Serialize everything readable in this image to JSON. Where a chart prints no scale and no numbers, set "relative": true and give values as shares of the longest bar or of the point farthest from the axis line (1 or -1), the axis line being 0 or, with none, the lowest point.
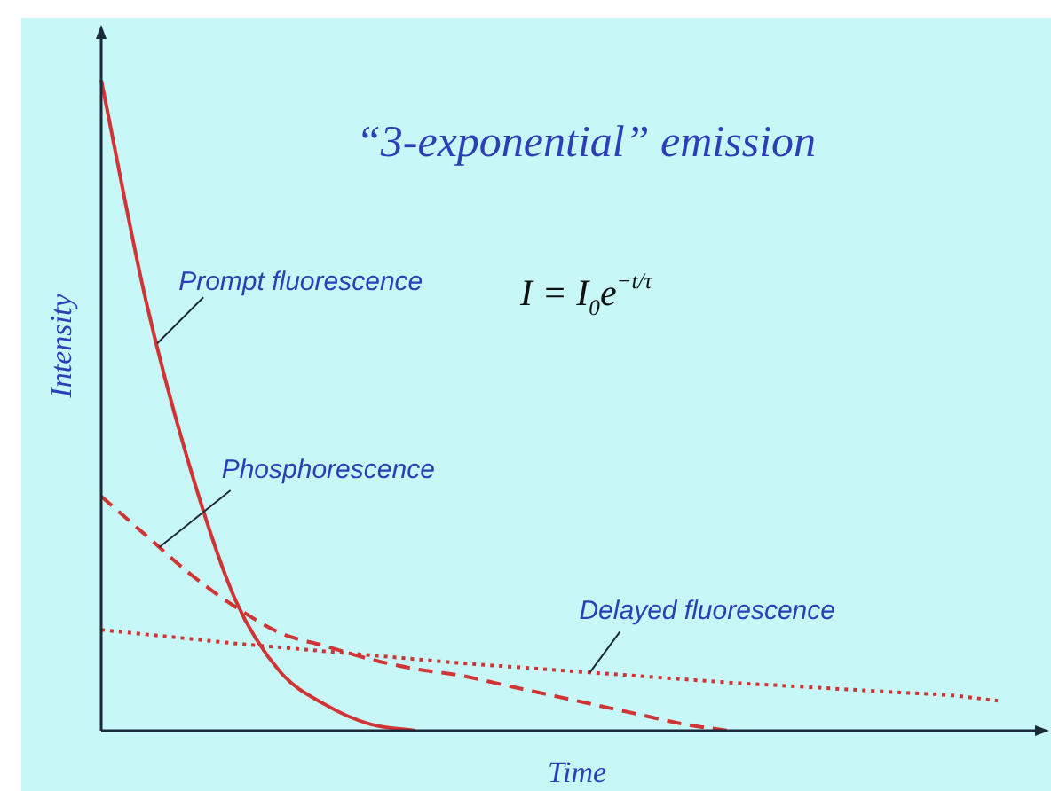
{
  "chart_data": {
    "type": "line",
    "relative": true,
    "title": "“3-exponential” emission",
    "xlabel": "Time",
    "ylabel": "Intensity",
    "categories": [
      null,
      null,
      null,
      null,
      null,
      null,
      null,
      null,
      null,
      null,
      null,
      null,
      null,
      null,
      null,
      null,
      null,
      null,
      null,
      null,
      null
    ],
    "series": [
      {
        "name": "Prompt fluorescence",
        "color": "#d03434",
        "line_style": "solid",
        "values": [
          1.0,
          0.66,
          0.4,
          0.2,
          0.09,
          0.04,
          0.01,
          0,
          null,
          null,
          null,
          null,
          null,
          null,
          null,
          null,
          null,
          null,
          null,
          null,
          null
        ]
      },
      {
        "name": "Phosphorescence",
        "color": "#d03434",
        "line_style": "dashed",
        "values": [
          0.36,
          0.3,
          0.24,
          0.19,
          0.15,
          0.13,
          0.11,
          0.095,
          0.085,
          0.07,
          0.055,
          0.04,
          0.025,
          0.01,
          0,
          null,
          null,
          null,
          null,
          null,
          null
        ]
      },
      {
        "name": "Delayed fluorescence",
        "color": "#d03434",
        "line_style": "dotted",
        "values": [
          0.155,
          0.148,
          0.141,
          0.134,
          0.128,
          0.122,
          0.116,
          0.11,
          0.104,
          0.099,
          0.094,
          0.089,
          0.084,
          0.079,
          0.074,
          0.07,
          0.066,
          0.062,
          0.058,
          0.054,
          0.046
        ]
      }
    ],
    "annotations": [
      "I = I$_{0}$e$^{−t/τ}$"
    ],
    "legend": false,
    "marker": "none"
  }
}
